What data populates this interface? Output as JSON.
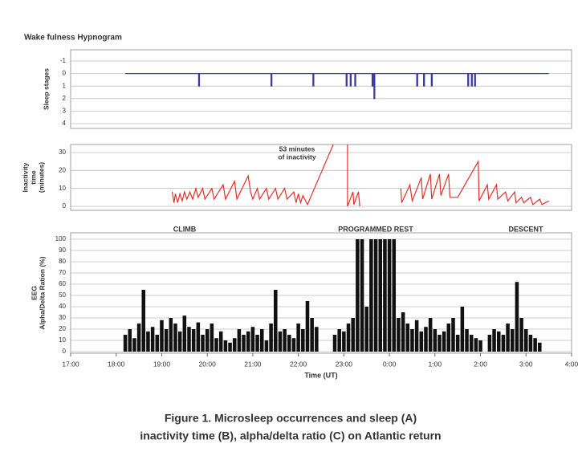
{
  "chart_data": [
    {
      "type": "line",
      "title": "Wake fulness Hypnogram",
      "ylabel": [
        "Sleep stages"
      ],
      "color": "#3b3ba6",
      "xlim": [
        17,
        28
      ],
      "ylim": [
        -1,
        4
      ],
      "y_inverted": true,
      "yticks": [
        -1,
        0,
        1,
        2,
        3,
        4
      ],
      "grid": true,
      "x": [
        18.2,
        19.81,
        19.81,
        19.83,
        19.83,
        21.4,
        21.4,
        21.42,
        21.42,
        22.32,
        22.32,
        22.34,
        22.34,
        23.05,
        23.05,
        23.07,
        23.07,
        23.14,
        23.14,
        23.16,
        23.16,
        23.24,
        23.24,
        23.26,
        23.26,
        23.62,
        23.62,
        23.64,
        23.64,
        23.66,
        23.66,
        23.68,
        23.68,
        24.6,
        24.6,
        24.62,
        24.62,
        24.75,
        24.75,
        24.77,
        24.77,
        24.92,
        24.92,
        24.94,
        24.94,
        25.72,
        25.72,
        25.74,
        25.74,
        25.8,
        25.8,
        25.82,
        25.82,
        25.87,
        25.87,
        25.89,
        25.89,
        27.5
      ],
      "values": [
        0,
        0,
        1,
        1,
        0,
        0,
        1,
        1,
        0,
        0,
        1,
        1,
        0,
        0,
        1,
        1,
        0,
        0,
        1,
        1,
        0,
        0,
        1,
        1,
        0,
        0,
        1,
        1,
        0,
        0,
        2,
        2,
        0,
        0,
        1,
        1,
        0,
        0,
        1,
        1,
        0,
        0,
        1,
        1,
        0,
        0,
        1,
        1,
        0,
        0,
        1,
        1,
        0,
        0,
        1,
        1,
        0,
        0
      ]
    },
    {
      "type": "line",
      "ylabel": [
        "Inactivity",
        "time",
        "(minutes)"
      ],
      "annotation": [
        "53 minutes",
        "of inactivity"
      ],
      "color": "#e0302c",
      "xlim": [
        17,
        28
      ],
      "ylim": [
        0,
        30
      ],
      "yticks": [
        0,
        10,
        20,
        30
      ],
      "grid": true,
      "x": [
        19.23,
        19.27,
        19.3,
        19.35,
        19.4,
        19.45,
        19.5,
        19.55,
        19.62,
        19.68,
        19.75,
        19.8,
        19.9,
        19.95,
        20.1,
        20.15,
        20.35,
        20.4,
        20.6,
        20.65,
        20.9,
        20.95,
        21.0,
        21.1,
        21.15,
        21.3,
        21.35,
        21.5,
        21.55,
        21.7,
        21.75,
        21.9,
        21.95,
        22.0,
        22.05,
        22.1,
        22.2,
        23.08,
        23.08,
        23.2,
        23.22,
        23.32,
        23.35,
        23.4,
        24.25,
        24.27,
        24.45,
        24.5,
        24.7,
        24.73,
        24.9,
        24.93,
        25.1,
        25.13,
        25.3,
        25.33,
        25.5,
        25.95,
        25.97,
        26.15,
        26.18,
        26.35,
        26.38,
        26.55,
        26.6,
        26.75,
        26.78,
        26.9,
        26.95,
        27.1,
        27.15,
        27.3,
        27.35,
        27.5
      ],
      "values": [
        8,
        2,
        7,
        2,
        7,
        3,
        8,
        4,
        8,
        4,
        10,
        5,
        10,
        4,
        10,
        4,
        12,
        4,
        14,
        4,
        17,
        8,
        4,
        10,
        4,
        10,
        4,
        10,
        4,
        10,
        4,
        8,
        2,
        7,
        2,
        6,
        1,
        53,
        0,
        8,
        1,
        8,
        0,
        null,
        10,
        2,
        12,
        3,
        16,
        4,
        18,
        4,
        18,
        6,
        18,
        5,
        5,
        25,
        3,
        12,
        4,
        12,
        4,
        8,
        3,
        8,
        2,
        5,
        2,
        5,
        1,
        4,
        1,
        3
      ]
    },
    {
      "type": "bar",
      "ylabel": [
        "EEG",
        "Alpha/Delta Ration (%)"
      ],
      "annotations": [
        "CLIMB",
        "PROGRAMMED REST",
        "DESCENT"
      ],
      "color": "#111111",
      "xlabel": "Time (UT)",
      "xlim": [
        17,
        28
      ],
      "ylim": [
        0,
        100
      ],
      "yticks": [
        0,
        10,
        20,
        30,
        40,
        50,
        60,
        70,
        80,
        90,
        100
      ],
      "grid": true,
      "xticks": [
        {
          "value": 17,
          "label": "17:00"
        },
        {
          "value": 18,
          "label": "18:00"
        },
        {
          "value": 19,
          "label": "19:00"
        },
        {
          "value": 20,
          "label": "20:00"
        },
        {
          "value": 21,
          "label": "21:00"
        },
        {
          "value": 22,
          "label": "22:00"
        },
        {
          "value": 23,
          "label": "23:00"
        },
        {
          "value": 24,
          "label": "0:00"
        },
        {
          "value": 25,
          "label": "1:00"
        },
        {
          "value": 26,
          "label": "2:00"
        },
        {
          "value": 27,
          "label": "3:00"
        },
        {
          "value": 28,
          "label": "4:00"
        }
      ],
      "x": [
        18.2,
        18.3,
        18.4,
        18.5,
        18.6,
        18.7,
        18.8,
        18.9,
        19.0,
        19.1,
        19.2,
        19.3,
        19.4,
        19.5,
        19.6,
        19.7,
        19.8,
        19.9,
        20.0,
        20.1,
        20.2,
        20.3,
        20.4,
        20.5,
        20.6,
        20.7,
        20.8,
        20.9,
        21.0,
        21.1,
        21.2,
        21.3,
        21.4,
        21.5,
        21.6,
        21.7,
        21.8,
        21.9,
        22.0,
        22.1,
        22.2,
        22.3,
        22.4,
        22.5,
        22.6,
        22.7,
        22.8,
        22.9,
        23.0,
        23.1,
        23.2,
        23.3,
        23.4,
        23.5,
        23.6,
        23.7,
        23.8,
        23.9,
        24.0,
        24.1,
        24.2,
        24.3,
        24.4,
        24.5,
        24.6,
        24.7,
        24.8,
        24.9,
        25.0,
        25.1,
        25.2,
        25.3,
        25.4,
        25.5,
        25.6,
        25.7,
        25.8,
        25.9,
        26.0,
        26.1,
        26.2,
        26.3,
        26.4,
        26.5,
        26.6,
        26.7,
        26.8,
        26.9,
        27.0,
        27.1,
        27.2,
        27.3
      ],
      "values": [
        15,
        20,
        12,
        25,
        55,
        18,
        22,
        15,
        28,
        20,
        30,
        25,
        18,
        32,
        22,
        20,
        26,
        15,
        20,
        25,
        12,
        18,
        10,
        8,
        12,
        20,
        15,
        18,
        22,
        15,
        20,
        10,
        25,
        55,
        18,
        20,
        15,
        12,
        25,
        20,
        45,
        30,
        22,
        null,
        null,
        null,
        15,
        20,
        18,
        25,
        30,
        100,
        100,
        40,
        100,
        100,
        100,
        100,
        100,
        100,
        30,
        35,
        25,
        20,
        28,
        18,
        22,
        30,
        20,
        15,
        18,
        25,
        30,
        15,
        40,
        20,
        15,
        12,
        10,
        null,
        15,
        20,
        18,
        15,
        25,
        20,
        62,
        30,
        20,
        15,
        12,
        8
      ]
    }
  ],
  "caption": [
    "Figure 1. Microsleep occurrences and sleep (A)",
    "inactivity time (B), alpha/delta ratio (C) on Atlantic return"
  ]
}
